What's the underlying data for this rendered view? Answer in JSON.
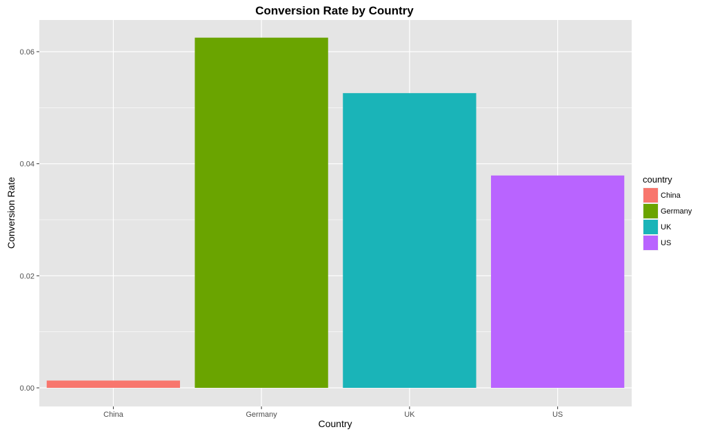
{
  "chart_data": {
    "type": "bar",
    "title": "Conversion Rate by Country",
    "xlabel": "Country",
    "ylabel": "Conversion Rate",
    "categories": [
      "China",
      "Germany",
      "UK",
      "US"
    ],
    "values": [
      0.0013,
      0.0625,
      0.0526,
      0.0379
    ],
    "colors": [
      "#F8766D",
      "#6AA400",
      "#1AB4B8",
      "#B964FF"
    ],
    "ylim": [
      0,
      0.066
    ],
    "yticks": [
      0.0,
      0.02,
      0.04,
      0.06
    ],
    "ytick_labels": [
      "0.00",
      "0.02",
      "0.04",
      "0.06"
    ],
    "grid": true,
    "panel_background": "#E5E5E5",
    "grid_color": "#FFFFFF",
    "legend": {
      "title": "country",
      "placement": "right",
      "entries": [
        "China",
        "Germany",
        "UK",
        "US"
      ]
    }
  }
}
